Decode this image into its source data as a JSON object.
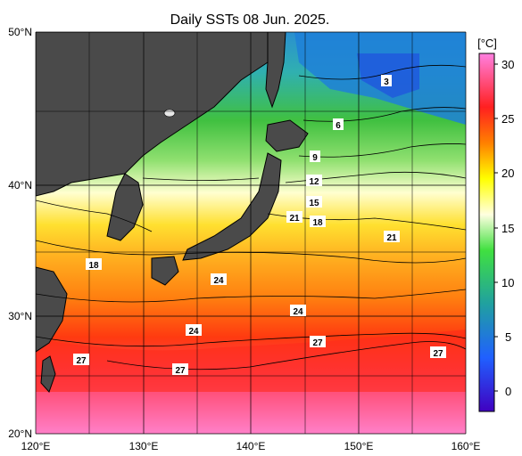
{
  "title": "Daily SSTs 08 Jun. 2025.",
  "lat_labels": [
    "50°N",
    "40°N",
    "30°N",
    "20°N"
  ],
  "lon_labels": [
    "120°E",
    "130°E",
    "140°E",
    "150°E",
    "160°E"
  ],
  "colorbar": {
    "unit": "[°C]",
    "ticks": [
      "30",
      "25",
      "20",
      "15",
      "10",
      "5",
      "0"
    ],
    "stops": [
      "#ff80e0",
      "#ff2020",
      "#ff8000",
      "#ffff00",
      "#ffffe0",
      "#40e040",
      "#20a0a0",
      "#2060ff",
      "#4000c0"
    ]
  },
  "colors": {
    "land": "#4a4a4a",
    "coast": "#000000",
    "grid": "#000000",
    "background": "#ffffff"
  },
  "contour_labels": [
    "3",
    "6",
    "9",
    "12",
    "15",
    "18",
    "21",
    "21",
    "18",
    "24",
    "24",
    "24",
    "27",
    "27",
    "27",
    "27"
  ]
}
